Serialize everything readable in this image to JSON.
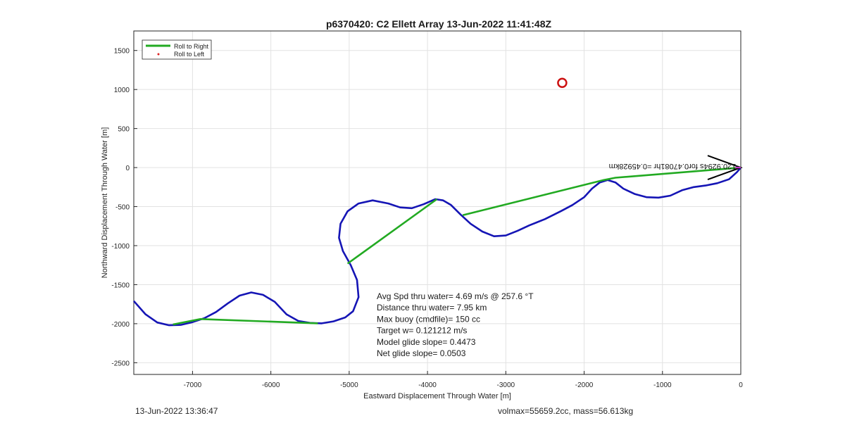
{
  "chart_data": {
    "type": "line",
    "title": "p6370420: C2 Ellett Array 13-Jun-2022 11:41:48Z",
    "xlabel": "Eastward Displacement Through Water [m]",
    "ylabel": "Northward Displacement Through Water [m]",
    "xlim": [
      -7750,
      0
    ],
    "ylim": [
      -2650,
      1750
    ],
    "xticks": [
      -7000,
      -6000,
      -5000,
      -4000,
      -3000,
      -2000,
      -1000,
      0
    ],
    "yticks": [
      -2500,
      -2000,
      -1500,
      -1000,
      -500,
      0,
      500,
      1000,
      1500
    ],
    "grid": true,
    "legend": {
      "placement": "top-left",
      "entries": [
        {
          "label": "Roll to Right",
          "color": "#22aa22",
          "style": "line"
        },
        {
          "label": "Roll to Left",
          "color": "#dd2222",
          "style": "marker"
        }
      ]
    },
    "series": [
      {
        "name": "track",
        "color": "#1515b5",
        "points": [
          [
            -7750,
            -1710
          ],
          [
            -7600,
            -1880
          ],
          [
            -7450,
            -1985
          ],
          [
            -7300,
            -2020
          ],
          [
            -7150,
            -2015
          ],
          [
            -7000,
            -1980
          ],
          [
            -6850,
            -1930
          ],
          [
            -6700,
            -1850
          ],
          [
            -6550,
            -1740
          ],
          [
            -6400,
            -1640
          ],
          [
            -6250,
            -1600
          ],
          [
            -6100,
            -1630
          ],
          [
            -5950,
            -1720
          ],
          [
            -5800,
            -1880
          ],
          [
            -5650,
            -1965
          ],
          [
            -5500,
            -1990
          ],
          [
            -5350,
            -1995
          ],
          [
            -5200,
            -1970
          ],
          [
            -5050,
            -1920
          ],
          [
            -4950,
            -1840
          ],
          [
            -4880,
            -1660
          ],
          [
            -4900,
            -1440
          ],
          [
            -4980,
            -1250
          ],
          [
            -5080,
            -1070
          ],
          [
            -5130,
            -900
          ],
          [
            -5110,
            -720
          ],
          [
            -5020,
            -560
          ],
          [
            -4880,
            -460
          ],
          [
            -4700,
            -420
          ],
          [
            -4500,
            -460
          ],
          [
            -4350,
            -510
          ],
          [
            -4200,
            -520
          ],
          [
            -4050,
            -470
          ],
          [
            -3900,
            -405
          ],
          [
            -3800,
            -420
          ],
          [
            -3700,
            -480
          ],
          [
            -3580,
            -600
          ],
          [
            -3450,
            -720
          ],
          [
            -3300,
            -820
          ],
          [
            -3150,
            -880
          ],
          [
            -3000,
            -870
          ],
          [
            -2850,
            -810
          ],
          [
            -2700,
            -740
          ],
          [
            -2500,
            -660
          ],
          [
            -2300,
            -560
          ],
          [
            -2150,
            -480
          ],
          [
            -2000,
            -380
          ],
          [
            -1900,
            -270
          ],
          [
            -1800,
            -190
          ],
          [
            -1700,
            -160
          ],
          [
            -1600,
            -190
          ],
          [
            -1500,
            -270
          ],
          [
            -1350,
            -340
          ],
          [
            -1200,
            -380
          ],
          [
            -1050,
            -385
          ],
          [
            -900,
            -360
          ],
          [
            -750,
            -290
          ],
          [
            -600,
            -250
          ],
          [
            -450,
            -230
          ],
          [
            -300,
            -200
          ],
          [
            -150,
            -150
          ],
          [
            -50,
            -60
          ],
          [
            0,
            0
          ]
        ]
      },
      {
        "name": "Roll to Right",
        "color": "#22aa22",
        "segments": [
          [
            [
              -7250,
              -2010
            ],
            [
              -6900,
              -1940
            ],
            [
              -5400,
              -1995
            ]
          ],
          [
            [
              -5020,
              -1230
            ],
            [
              -3880,
              -405
            ]
          ],
          [
            [
              -3550,
              -610
            ],
            [
              -1750,
              -160
            ],
            [
              -1600,
              -130
            ],
            [
              0,
              0
            ]
          ]
        ]
      }
    ],
    "marker_circle": {
      "x": -2280,
      "y": 1085,
      "color": "#cc1111"
    },
    "arrow": {
      "x": 0,
      "y": 0,
      "color": "#000000"
    },
    "arrow_label": "-120.9294s for0.47081hr =0.45928km",
    "annotations": [
      "Avg Spd thru water=  4.69 m/s @ 257.6 °T",
      "Distance thru water=  7.95 km",
      "Max buoy (cmdfile)= 150 cc",
      "Target w= 0.121212 m/s",
      "Model glide slope= 0.4473",
      "Net glide slope= 0.0503"
    ]
  },
  "footer": {
    "left": "13-Jun-2022 13:36:47",
    "right": "volmax=55659.2cc, mass=56.613kg"
  }
}
